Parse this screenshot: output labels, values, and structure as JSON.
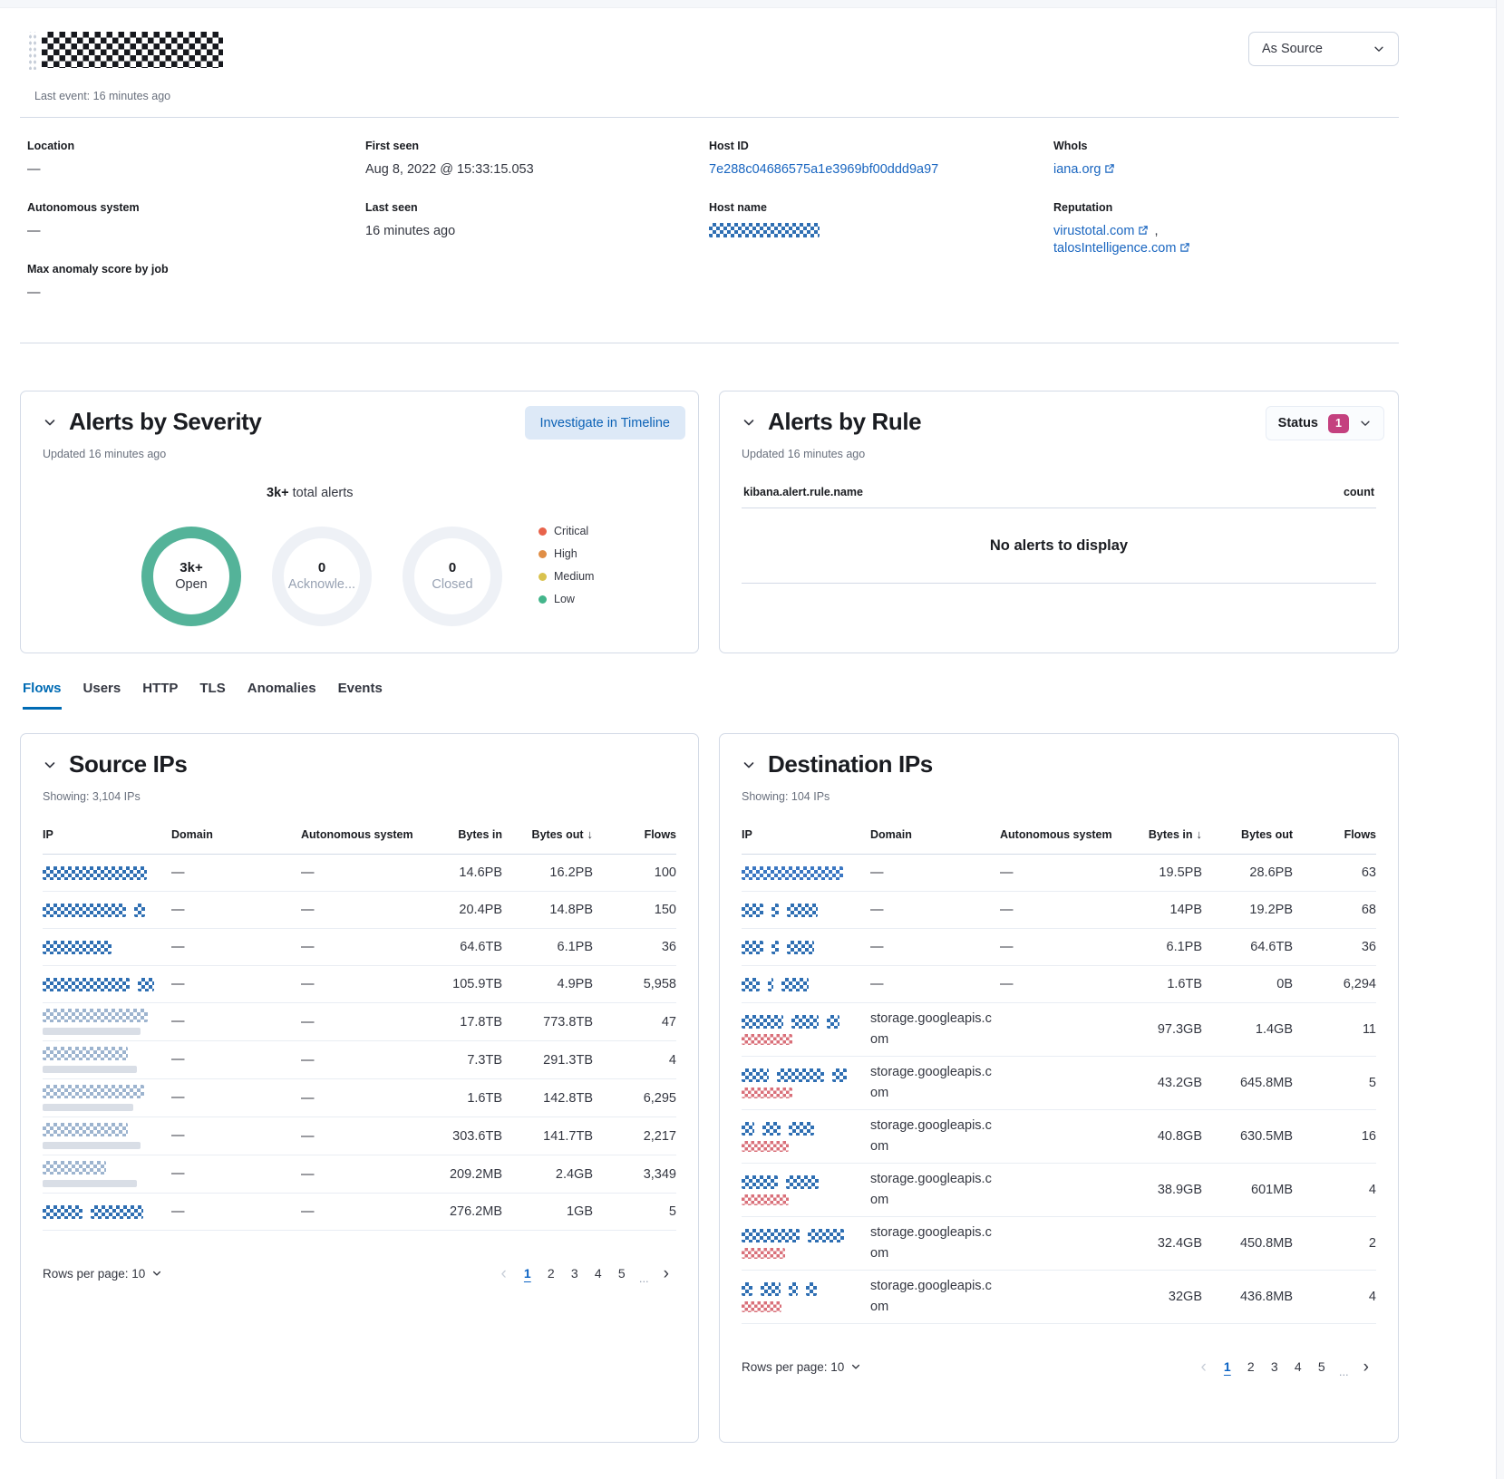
{
  "header": {
    "last_event": "Last event: 16 minutes ago",
    "view_selector": "As Source"
  },
  "overview": {
    "location_label": "Location",
    "location_value": "—",
    "autonomous_system_label": "Autonomous system",
    "autonomous_system_value": "—",
    "max_anomaly_label": "Max anomaly score by job",
    "max_anomaly_value": "—",
    "first_seen_label": "First seen",
    "first_seen_value": "Aug 8, 2022 @ 15:33:15.053",
    "last_seen_label": "Last seen",
    "last_seen_value": "16 minutes ago",
    "host_id_label": "Host ID",
    "host_id_value": "7e288c04686575a1e3969bf00ddd9a97",
    "host_name_label": "Host name",
    "whois_label": "WhoIs",
    "whois_value": "iana.org",
    "reputation_label": "Reputation",
    "reputation_link_1": "virustotal.com",
    "reputation_separator": ",",
    "reputation_link_2": "talosIntelligence.com"
  },
  "alerts_by_severity": {
    "title": "Alerts by Severity",
    "investigate_button": "Investigate in Timeline",
    "updated": "Updated 16 minutes ago",
    "total_value": "3k+",
    "total_suffix": " total alerts",
    "donuts": [
      {
        "value": "3k+",
        "label": "Open",
        "ring_color": "#54b399",
        "label_color": "#343741"
      },
      {
        "value": "0",
        "label": "Acknowle...",
        "ring_color": "#eef1f6",
        "label_color": "#98a2b3"
      },
      {
        "value": "0",
        "label": "Closed",
        "ring_color": "#eef1f6",
        "label_color": "#98a2b3"
      }
    ],
    "legend": [
      {
        "label": "Critical",
        "color": "#e8634b"
      },
      {
        "label": "High",
        "color": "#e08e46"
      },
      {
        "label": "Medium",
        "color": "#d9c24e"
      },
      {
        "label": "Low",
        "color": "#43b58b"
      }
    ]
  },
  "alerts_by_rule": {
    "title": "Alerts by Rule",
    "status_label": "Status",
    "status_badge": "1",
    "updated": "Updated 16 minutes ago",
    "name_column": "kibana.alert.rule.name",
    "count_column": "count",
    "empty_message": "No alerts to display"
  },
  "tabs": {
    "items": [
      "Flows",
      "Users",
      "HTTP",
      "TLS",
      "Anomalies",
      "Events"
    ],
    "active": "Flows"
  },
  "source_ips": {
    "title": "Source IPs",
    "showing": "Showing: 3,104 IPs",
    "columns": {
      "ip": "IP",
      "domain": "Domain",
      "autonomous_system": "Autonomous system",
      "bytes_in": "Bytes in",
      "bytes_out": "Bytes out",
      "flows": "Flows"
    },
    "sorted_by": "bytes_out",
    "sort_arrow": "↓",
    "rows": [
      {
        "domain": "—",
        "autonomous_system": "—",
        "bytes_in": "14.6PB",
        "bytes_out": "16.2PB",
        "flows": "100"
      },
      {
        "domain": "—",
        "autonomous_system": "—",
        "bytes_in": "20.4PB",
        "bytes_out": "14.8PB",
        "flows": "150"
      },
      {
        "domain": "—",
        "autonomous_system": "—",
        "bytes_in": "64.6TB",
        "bytes_out": "6.1PB",
        "flows": "36"
      },
      {
        "domain": "—",
        "autonomous_system": "—",
        "bytes_in": "105.9TB",
        "bytes_out": "4.9PB",
        "flows": "5,958"
      },
      {
        "domain": "—",
        "autonomous_system": "—",
        "bytes_in": "17.8TB",
        "bytes_out": "773.8TB",
        "flows": "47"
      },
      {
        "domain": "—",
        "autonomous_system": "—",
        "bytes_in": "7.3TB",
        "bytes_out": "291.3TB",
        "flows": "4"
      },
      {
        "domain": "—",
        "autonomous_system": "—",
        "bytes_in": "1.6TB",
        "bytes_out": "142.8TB",
        "flows": "6,295"
      },
      {
        "domain": "—",
        "autonomous_system": "—",
        "bytes_in": "303.6TB",
        "bytes_out": "141.7TB",
        "flows": "2,217"
      },
      {
        "domain": "—",
        "autonomous_system": "—",
        "bytes_in": "209.2MB",
        "bytes_out": "2.4GB",
        "flows": "3,349"
      },
      {
        "domain": "—",
        "autonomous_system": "—",
        "bytes_in": "276.2MB",
        "bytes_out": "1GB",
        "flows": "5"
      }
    ],
    "pagination": {
      "rows_per_page": "Rows per page: 10",
      "pages": [
        "1",
        "2",
        "3",
        "4",
        "5"
      ],
      "active_page": "1",
      "ellipsis": "..."
    }
  },
  "destination_ips": {
    "title": "Destination IPs",
    "showing": "Showing: 104 IPs",
    "columns": {
      "ip": "IP",
      "domain": "Domain",
      "autonomous_system": "Autonomous system",
      "bytes_in": "Bytes in",
      "bytes_out": "Bytes out",
      "flows": "Flows"
    },
    "sorted_by": "bytes_in",
    "sort_arrow": "↓",
    "rows": [
      {
        "domain": "—",
        "autonomous_system": "—",
        "bytes_in": "19.5PB",
        "bytes_out": "28.6PB",
        "flows": "63"
      },
      {
        "domain": "—",
        "autonomous_system": "—",
        "bytes_in": "14PB",
        "bytes_out": "19.2PB",
        "flows": "68"
      },
      {
        "domain": "—",
        "autonomous_system": "—",
        "bytes_in": "6.1PB",
        "bytes_out": "64.6TB",
        "flows": "36"
      },
      {
        "domain": "—",
        "autonomous_system": "—",
        "bytes_in": "1.6TB",
        "bytes_out": "0B",
        "flows": "6,294"
      },
      {
        "domain": "storage.googleapis.com",
        "autonomous_system": "",
        "bytes_in": "97.3GB",
        "bytes_out": "1.4GB",
        "flows": "11"
      },
      {
        "domain": "storage.googleapis.com",
        "autonomous_system": "",
        "bytes_in": "43.2GB",
        "bytes_out": "645.8MB",
        "flows": "5"
      },
      {
        "domain": "storage.googleapis.com",
        "autonomous_system": "",
        "bytes_in": "40.8GB",
        "bytes_out": "630.5MB",
        "flows": "16"
      },
      {
        "domain": "storage.googleapis.com",
        "autonomous_system": "",
        "bytes_in": "38.9GB",
        "bytes_out": "601MB",
        "flows": "4"
      },
      {
        "domain": "storage.googleapis.com",
        "autonomous_system": "",
        "bytes_in": "32.4GB",
        "bytes_out": "450.8MB",
        "flows": "2"
      },
      {
        "domain": "storage.googleapis.com",
        "autonomous_system": "",
        "bytes_in": "32GB",
        "bytes_out": "436.8MB",
        "flows": "4"
      }
    ],
    "pagination": {
      "rows_per_page": "Rows per page: 10",
      "pages": [
        "1",
        "2",
        "3",
        "4",
        "5"
      ],
      "active_page": "1",
      "ellipsis": "..."
    }
  },
  "colors": {
    "link": "#1a66c0",
    "active_tab": "#006bb4",
    "panel_border": "#d3dae6",
    "investigate_bg": "#dde9f7",
    "investigate_text": "#0c62b6",
    "status_badge_bg": "#c4417f",
    "ring_open": "#54b399",
    "ring_empty": "#eef1f6"
  }
}
